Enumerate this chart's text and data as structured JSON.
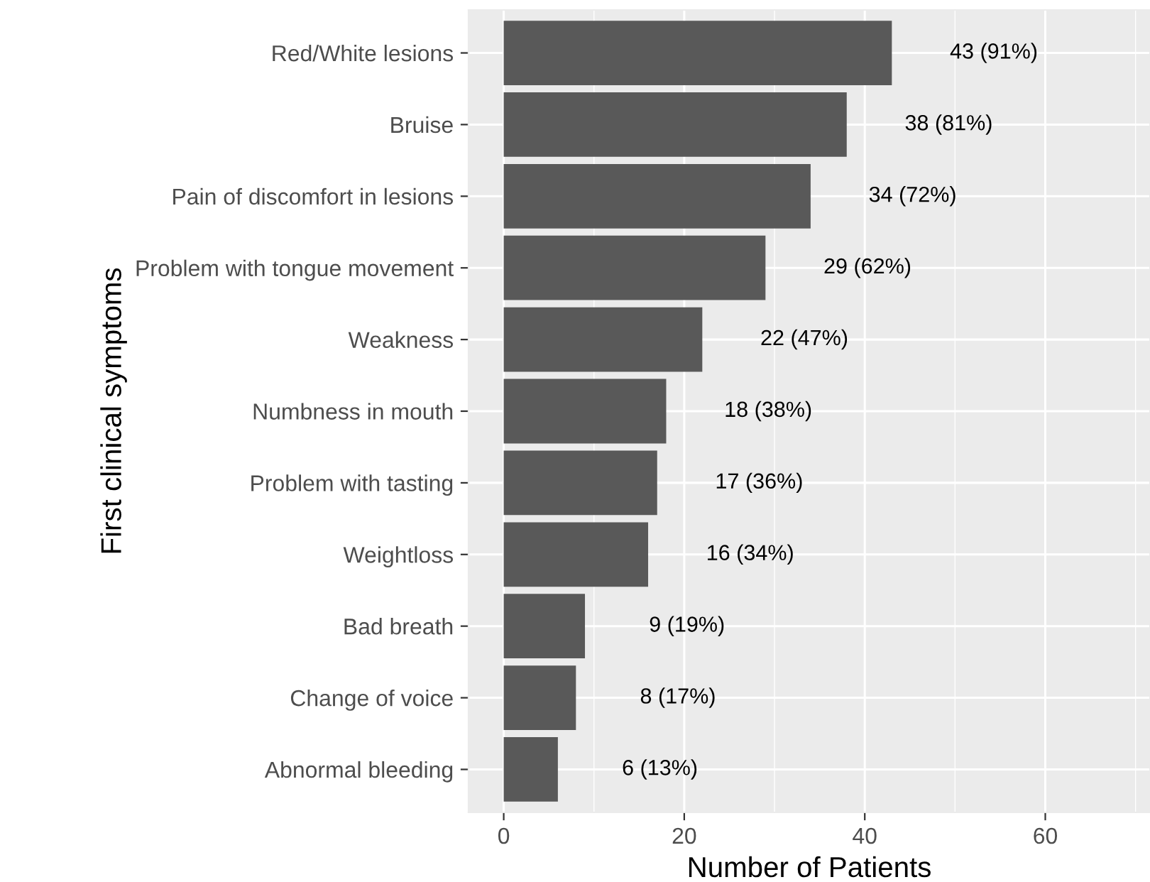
{
  "chart_data": {
    "type": "bar",
    "orientation": "horizontal",
    "xlabel": "Number of Patients",
    "ylabel": "First clinical symptoms",
    "categories": [
      "Red/White lesions",
      "Bruise",
      "Pain of discomfort in lesions",
      "Problem with tongue movement",
      "Weakness",
      "Numbness in mouth",
      "Problem with tasting",
      "Weightloss",
      "Bad breath",
      "Change of voice",
      "Abnormal bleeding"
    ],
    "values": [
      43,
      38,
      34,
      29,
      22,
      18,
      17,
      16,
      9,
      8,
      6
    ],
    "value_labels": [
      "43 (91%)",
      "38 (81%)",
      "34 (72%)",
      "29 (62%)",
      "22 (47%)",
      "18 (38%)",
      "17 (36%)",
      "16 (34%)",
      "9 (19%)",
      "8 (17%)",
      "6 (13%)"
    ],
    "color": "#595959",
    "xlim": [
      -3.9,
      71.6
    ],
    "xticks": [
      0,
      20,
      40,
      60
    ],
    "grid": true,
    "legend": false
  }
}
